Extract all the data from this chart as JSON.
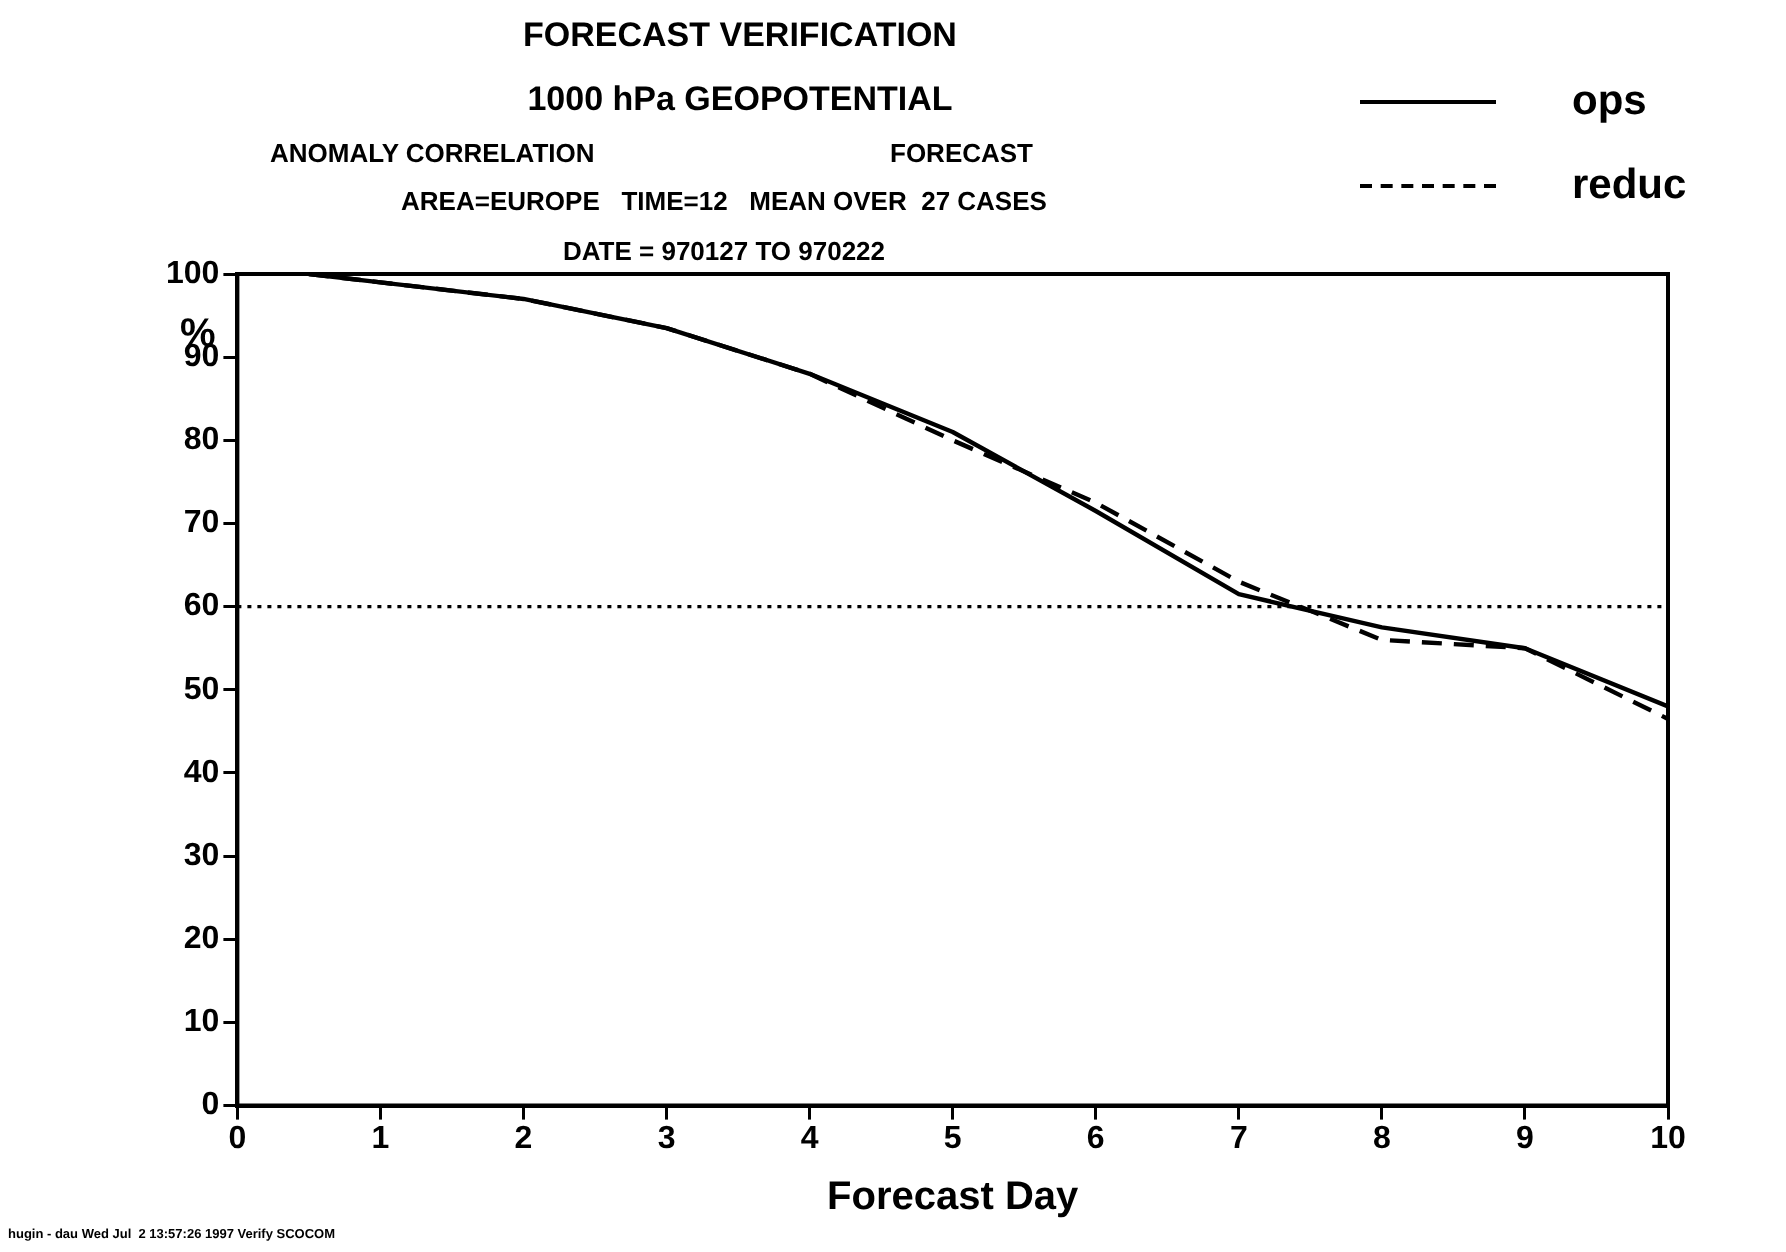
{
  "chart_data": {
    "type": "line",
    "title": "FORECAST VERIFICATION",
    "subtitle": "1000 hPa GEOPOTENTIAL",
    "annotations": [
      "ANOMALY CORRELATION",
      "FORECAST",
      "AREA=EUROPE   TIME=12   MEAN OVER  27 CASES",
      "DATE = 970127 TO 970222",
      "hugin - dau Wed Jul  2 13:57:26 1997 Verify SCOCOM"
    ],
    "xlabel": "Forecast Day",
    "ylabel": "%",
    "x": [
      0.5,
      1,
      2,
      3,
      4,
      5,
      6,
      7,
      8,
      9,
      10
    ],
    "series": [
      {
        "name": "ops",
        "color": "#000000",
        "line_style": "solid",
        "values": [
          100,
          99,
          97,
          93.5,
          88,
          81,
          71.5,
          61.5,
          57.5,
          55,
          48
        ]
      },
      {
        "name": "reduc",
        "color": "#000000",
        "line_style": "dashed",
        "values": [
          100,
          99,
          97,
          93.5,
          88,
          80,
          72.5,
          63,
          56,
          55,
          46.5
        ]
      }
    ],
    "xlim": [
      0,
      10
    ],
    "xticks": [
      0,
      1,
      2,
      3,
      4,
      5,
      6,
      7,
      8,
      9,
      10
    ],
    "ylim": [
      0,
      100
    ],
    "yticks": [
      0,
      10,
      20,
      30,
      40,
      50,
      60,
      70,
      80,
      90,
      100
    ],
    "ref_lines": [
      {
        "axis": "y",
        "value": 60,
        "line_style": "dotted",
        "color": "#000000"
      }
    ],
    "legend": "top right",
    "grid": false,
    "marker": "none"
  }
}
